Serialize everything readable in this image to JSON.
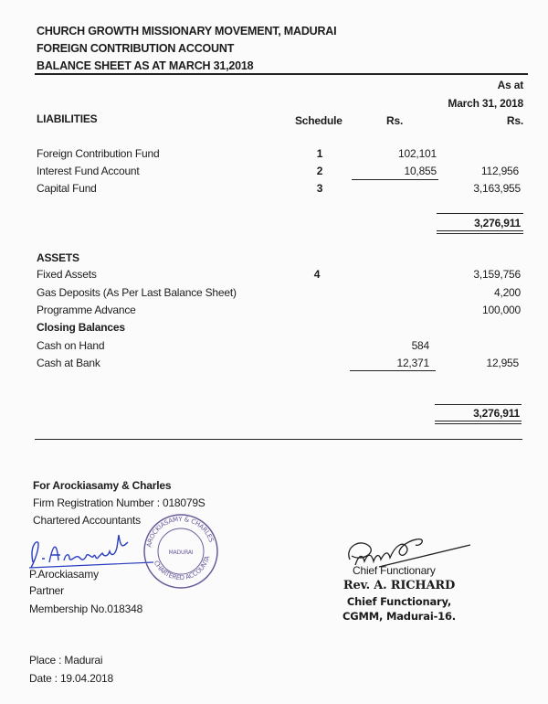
{
  "header": {
    "org": "CHURCH GROWTH MISSIONARY MOVEMENT, MADURAI",
    "account": "FOREIGN CONTRIBUTION ACCOUNT",
    "statement": "BALANCE SHEET AS AT MARCH 31,2018"
  },
  "columns": {
    "as_at": "As at",
    "date": "March 31, 2018",
    "schedule": "Schedule",
    "rs1": "Rs.",
    "rs2": "Rs."
  },
  "liabilities": {
    "heading": "LIABILITIES",
    "rows": [
      {
        "label": "Foreign Contribution Fund",
        "schedule": "1",
        "rs": "102,101",
        "total": ""
      },
      {
        "label": "Interest Fund Account",
        "schedule": "2",
        "rs": "10,855",
        "total": "112,956"
      },
      {
        "label": "Capital Fund",
        "schedule": "3",
        "rs": "",
        "total": "3,163,955"
      }
    ],
    "grand_total": "3,276,911"
  },
  "assets": {
    "heading": "ASSETS",
    "rows": [
      {
        "label": "Fixed Assets",
        "schedule": "4",
        "rs": "",
        "total": "3,159,756"
      },
      {
        "label": "Gas Deposits (As Per Last Balance Sheet)",
        "schedule": "",
        "rs": "",
        "total": "4,200"
      },
      {
        "label": "Programme Advance",
        "schedule": "",
        "rs": "",
        "total": "100,000"
      }
    ],
    "closing_heading": "Closing Balances",
    "closing_rows": [
      {
        "label": "Cash on Hand",
        "rs": "584",
        "total": ""
      },
      {
        "label": "Cash at Bank",
        "rs": "12,371",
        "total": "12,955"
      }
    ],
    "grand_total": "3,276,911"
  },
  "auditor": {
    "firm": "For Arockiasamy & Charles",
    "registration": "Firm Registration Number : 018079S",
    "designation": "Chartered Accountants",
    "name": "P.Arockiasamy",
    "role": "Partner",
    "membership": "Membership No.018348",
    "signature": "P.Arockiasamy",
    "stamp": {
      "top": "AROCKIASAMY & CHARLES",
      "bottom": "CHARTERED ACCOUNTANTS",
      "center": "MADURAI"
    }
  },
  "functionary": {
    "label": "Chief Functionary",
    "name": "Rev. A. RICHARD",
    "title": "Chief Functionary,",
    "org": "CGMM, Madurai-16."
  },
  "footer": {
    "place": "Place : Madurai",
    "date": "Date : 19.04.2018"
  },
  "colors": {
    "ink": "#1c1c1c",
    "signature_blue": "#2a3fc0",
    "stamp_purple": "#6a5a9a"
  }
}
